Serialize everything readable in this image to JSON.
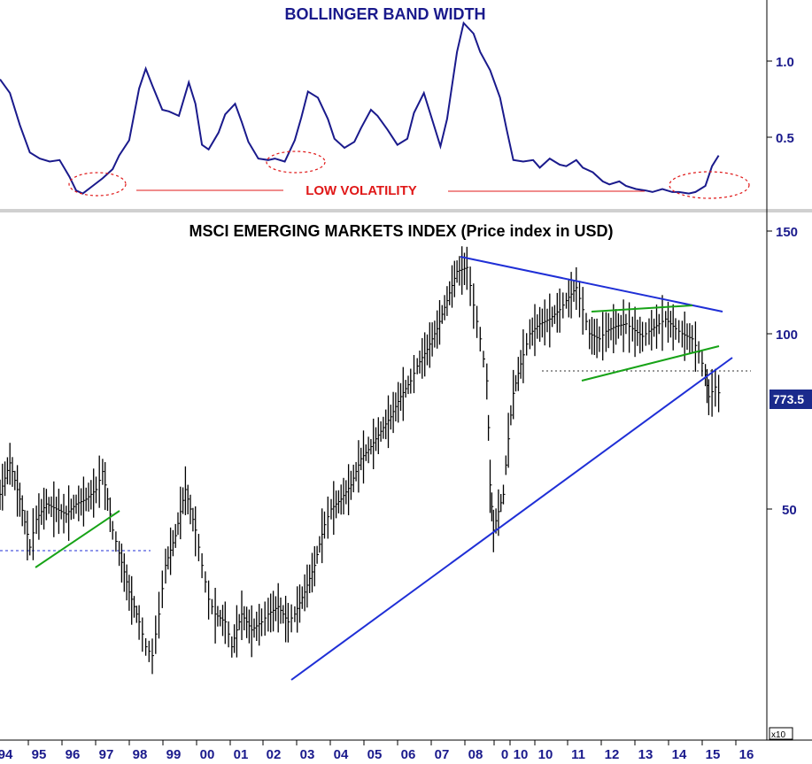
{
  "colors": {
    "bandwidth_line": "#1a1a8c",
    "price_bars": "#000000",
    "trendline_blue": "#1f2fd6",
    "trendline_green": "#17a317",
    "annotation_red": "#e01818",
    "last_price_badge": "#1a2a8c",
    "axis_text": "#1a1a8c"
  },
  "chart_data": [
    {
      "type": "line",
      "title": "BOLLINGER BAND WIDTH",
      "y_ticks": [
        "1.0",
        "0.5"
      ],
      "ylim": [
        0.08,
        1.33
      ],
      "annotation": "LOW VOLATILITY",
      "x": [
        1994.0,
        1994.3,
        1994.6,
        1994.9,
        1995.2,
        1995.5,
        1995.8,
        1996.1,
        1996.3,
        1996.5,
        1996.8,
        1997.1,
        1997.4,
        1997.6,
        1997.9,
        1998.2,
        1998.4,
        1998.6,
        1998.9,
        1999.1,
        1999.4,
        1999.7,
        1999.9,
        2000.1,
        2000.3,
        2000.6,
        2000.8,
        2001.1,
        2001.3,
        2001.5,
        2001.8,
        2002.1,
        2002.3,
        2002.6,
        2002.9,
        2003.1,
        2003.3,
        2003.6,
        2003.9,
        2004.1,
        2004.4,
        2004.7,
        2004.9,
        2005.2,
        2005.4,
        2005.7,
        2006.0,
        2006.3,
        2006.5,
        2006.8,
        2007.0,
        2007.3,
        2007.5,
        2007.8,
        2008.0,
        2008.3,
        2008.5,
        2008.8,
        2009.1,
        2009.3,
        2009.5,
        2009.8,
        2010.1,
        2010.3,
        2010.6,
        2010.9,
        2011.1,
        2011.4,
        2011.6,
        2011.9,
        2012.2,
        2012.4,
        2012.7,
        2012.9,
        2013.2,
        2013.5,
        2013.7,
        2014.0,
        2014.3,
        2014.5,
        2014.8,
        2015.0,
        2015.3,
        2015.5,
        2015.7
      ],
      "values": [
        0.88,
        0.79,
        0.58,
        0.4,
        0.36,
        0.34,
        0.35,
        0.24,
        0.15,
        0.13,
        0.18,
        0.23,
        0.29,
        0.38,
        0.48,
        0.82,
        0.95,
        0.84,
        0.68,
        0.67,
        0.64,
        0.86,
        0.72,
        0.45,
        0.42,
        0.53,
        0.65,
        0.72,
        0.6,
        0.47,
        0.36,
        0.35,
        0.36,
        0.34,
        0.48,
        0.63,
        0.8,
        0.76,
        0.62,
        0.49,
        0.43,
        0.47,
        0.56,
        0.68,
        0.64,
        0.55,
        0.45,
        0.49,
        0.66,
        0.79,
        0.65,
        0.44,
        0.62,
        1.06,
        1.25,
        1.18,
        1.06,
        0.94,
        0.76,
        0.55,
        0.35,
        0.34,
        0.35,
        0.3,
        0.36,
        0.32,
        0.31,
        0.35,
        0.3,
        0.27,
        0.21,
        0.19,
        0.21,
        0.18,
        0.16,
        0.15,
        0.14,
        0.16,
        0.14,
        0.14,
        0.13,
        0.14,
        0.18,
        0.31,
        0.38
      ]
    },
    {
      "type": "line",
      "title": "MSCI EMERGING MARKETS INDEX (Price index in USD)",
      "y_ticks": [
        "150",
        "100",
        "50"
      ],
      "scale": "log",
      "last_value_badge": "773.5",
      "multiplier_label": "x10",
      "x": [
        1994.0,
        1994.3,
        1994.6,
        1994.9,
        1995.1,
        1995.4,
        1995.7,
        1996.0,
        1996.3,
        1996.6,
        1996.9,
        1997.1,
        1997.4,
        1997.6,
        1997.9,
        1998.2,
        1998.4,
        1998.6,
        1998.8,
        1999.0,
        1999.3,
        1999.6,
        1999.9,
        2000.1,
        2000.3,
        2000.5,
        2000.8,
        2001.0,
        2001.3,
        2001.6,
        2001.9,
        2002.1,
        2002.4,
        2002.7,
        2002.9,
        2003.2,
        2003.5,
        2003.8,
        2004.0,
        2004.3,
        2004.6,
        2004.9,
        2005.2,
        2005.5,
        2005.8,
        2006.1,
        2006.4,
        2006.6,
        2006.9,
        2007.2,
        2007.5,
        2007.8,
        2008.1,
        2008.3,
        2008.5,
        2008.7,
        2008.8,
        2008.9,
        2009.2,
        2009.5,
        2009.8,
        2010.0,
        2010.3,
        2010.6,
        2010.9,
        2011.1,
        2011.4,
        2011.6,
        2011.8,
        2012.1,
        2012.3,
        2012.6,
        2012.9,
        2013.1,
        2013.4,
        2013.6,
        2013.9,
        2014.1,
        2014.4,
        2014.6,
        2014.9,
        2015.1,
        2015.3,
        2015.4,
        2015.6,
        2015.8
      ],
      "values": [
        53.0,
        60.0,
        52.0,
        43.0,
        48.0,
        51.0,
        50.0,
        49.0,
        51.0,
        52.0,
        54.0,
        58.0,
        46.0,
        42.0,
        36.0,
        32.0,
        29.0,
        28.0,
        33.0,
        40.0,
        45.0,
        54.0,
        46.0,
        40.0,
        35.0,
        33.0,
        32.0,
        29.0,
        33.0,
        31.0,
        32.0,
        33.0,
        34.0,
        32.0,
        33.0,
        36.0,
        40.0,
        47.0,
        50.0,
        52.0,
        55.0,
        61.0,
        64.0,
        68.0,
        72.0,
        78.0,
        83.0,
        88.0,
        94.0,
        102.0,
        114.0,
        128.0,
        130.0,
        112.0,
        98.0,
        83.0,
        55.0,
        46.0,
        53.0,
        79.0,
        92.0,
        100.0,
        104.0,
        106.0,
        110.0,
        114.0,
        120.0,
        110.0,
        100.0,
        98.0,
        101.0,
        103.0,
        104.0,
        102.0,
        99.0,
        101.0,
        104.0,
        106.0,
        102.0,
        100.0,
        98.0,
        93.0,
        85.0,
        78.0,
        81.0,
        77.35
      ]
    }
  ],
  "x_axis_labels": [
    "94",
    "95",
    "96",
    "97",
    "98",
    "99",
    "00",
    "01",
    "02",
    "03",
    "04",
    "05",
    "06",
    "07",
    "08",
    "0",
    "10",
    "10",
    "11",
    "12",
    "13",
    "14",
    "15",
    "16"
  ],
  "upper_pane": {
    "title": "BOLLINGER BAND WIDTH",
    "ticks": [
      "1.0",
      "0.5"
    ],
    "annotation": "LOW VOLATILITY"
  },
  "lower_pane": {
    "title": "MSCI EMERGING MARKETS INDEX (Price index in USD)",
    "ticks": [
      "150",
      "100",
      "50"
    ],
    "last_price": "773.5",
    "multiplier": "x10"
  }
}
